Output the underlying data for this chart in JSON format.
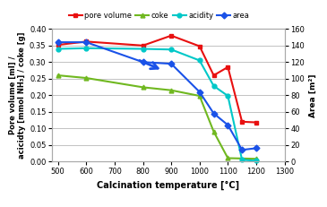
{
  "pore_volume": {
    "x": [
      500,
      600,
      800,
      900,
      1000,
      1050,
      1100,
      1150,
      1200
    ],
    "y": [
      0.352,
      0.362,
      0.35,
      0.38,
      0.348,
      0.26,
      0.285,
      0.12,
      0.118
    ],
    "color": "#e81010",
    "marker": "s",
    "label": "pore volume"
  },
  "coke": {
    "x": [
      500,
      600,
      800,
      900,
      1000,
      1050,
      1100,
      1200
    ],
    "y": [
      0.26,
      0.252,
      0.224,
      0.215,
      0.198,
      0.09,
      0.01,
      0.008
    ],
    "color": "#70b820",
    "marker": "^",
    "label": "coke"
  },
  "acidity": {
    "x": [
      500,
      600,
      800,
      900,
      1000,
      1050,
      1100,
      1150,
      1200
    ],
    "y": [
      0.34,
      0.342,
      0.34,
      0.338,
      0.305,
      0.228,
      0.198,
      0.005,
      0.002
    ],
    "color": "#00c8c8",
    "marker": "o",
    "label": "acidity"
  },
  "area": {
    "x": [
      500,
      600,
      800,
      900,
      1000,
      1050,
      1100,
      1150,
      1200
    ],
    "y": [
      144,
      144,
      120,
      118,
      84,
      58,
      44,
      14,
      16
    ],
    "color": "#1a52e8",
    "marker": "D",
    "label": "area"
  },
  "xlim": [
    480,
    1300
  ],
  "ylim_left": [
    0,
    0.4
  ],
  "ylim_right": [
    0,
    160
  ],
  "yticks_left": [
    0,
    0.05,
    0.1,
    0.15,
    0.2,
    0.25,
    0.3,
    0.35,
    0.4
  ],
  "yticks_right": [
    0,
    20,
    40,
    60,
    80,
    100,
    120,
    140,
    160
  ],
  "xticks": [
    500,
    600,
    700,
    800,
    900,
    1000,
    1100,
    1200,
    1300
  ],
  "xlabel": "Calcination temperature [°C]",
  "ylabel_left": "Pore volume [ml] /\nacicidty [mmol NH₃] / coke [g]",
  "ylabel_right": "Area [m²]",
  "background_color": "#ffffff",
  "figsize": [
    3.65,
    2.31
  ],
  "dpi": 100
}
